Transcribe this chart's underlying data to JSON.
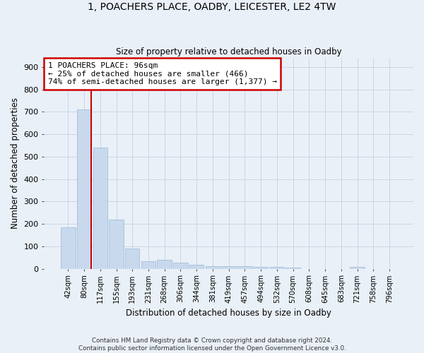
{
  "title": "1, POACHERS PLACE, OADBY, LEICESTER, LE2 4TW",
  "subtitle": "Size of property relative to detached houses in Oadby",
  "xlabel": "Distribution of detached houses by size in Oadby",
  "ylabel": "Number of detached properties",
  "categories": [
    "42sqm",
    "80sqm",
    "117sqm",
    "155sqm",
    "193sqm",
    "231sqm",
    "268sqm",
    "306sqm",
    "344sqm",
    "381sqm",
    "419sqm",
    "457sqm",
    "494sqm",
    "532sqm",
    "570sqm",
    "608sqm",
    "645sqm",
    "683sqm",
    "721sqm",
    "758sqm",
    "796sqm"
  ],
  "values": [
    185,
    710,
    540,
    220,
    90,
    32,
    40,
    28,
    18,
    12,
    10,
    10,
    8,
    8,
    6,
    0,
    0,
    0,
    8,
    0,
    0
  ],
  "bar_color": "#c8d9ed",
  "bar_edge_color": "#99b8d4",
  "grid_color": "#ccd5e3",
  "bg_color": "#eaf0f8",
  "property_line_color": "#cc0000",
  "annotation_text": "1 POACHERS PLACE: 96sqm\n← 25% of detached houses are smaller (466)\n74% of semi-detached houses are larger (1,377) →",
  "annotation_box_color": "#cc0000",
  "footer_line1": "Contains HM Land Registry data © Crown copyright and database right 2024.",
  "footer_line2": "Contains public sector information licensed under the Open Government Licence v3.0.",
  "ylim": [
    0,
    940
  ],
  "yticks": [
    0,
    100,
    200,
    300,
    400,
    500,
    600,
    700,
    800,
    900
  ]
}
